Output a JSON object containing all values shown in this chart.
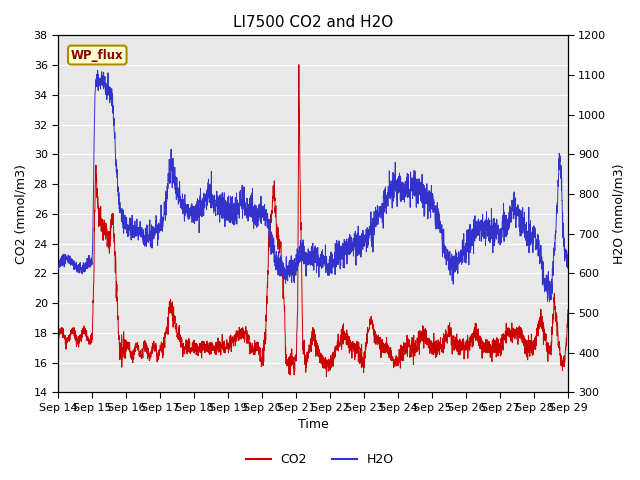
{
  "title": "LI7500 CO2 and H2O",
  "xlabel": "Time",
  "ylabel_left": "CO2 (mmol/m3)",
  "ylabel_right": "H2O (mmol/m3)",
  "ylim_left": [
    14,
    38
  ],
  "ylim_right": [
    300,
    1200
  ],
  "yticks_left": [
    14,
    16,
    18,
    20,
    22,
    24,
    26,
    28,
    30,
    32,
    34,
    36,
    38
  ],
  "yticks_right": [
    300,
    400,
    500,
    600,
    700,
    800,
    900,
    1000,
    1100,
    1200
  ],
  "x_labels": [
    "Sep 14",
    "Sep 15",
    "Sep 16",
    "Sep 17",
    "Sep 18",
    "Sep 19",
    "Sep 20",
    "Sep 21",
    "Sep 22",
    "Sep 23",
    "Sep 24",
    "Sep 25",
    "Sep 26",
    "Sep 27",
    "Sep 28",
    "Sep 29"
  ],
  "co2_color": "#cc0000",
  "h2o_color": "#3333cc",
  "background_color": "#e8e8e8",
  "legend_label_co2": "CO2",
  "legend_label_h2o": "H2O",
  "annotation_text": "WP_flux",
  "annotation_bg": "#ffffcc",
  "annotation_border": "#aa8800",
  "grid_color": "#ffffff",
  "title_fontsize": 11,
  "axis_fontsize": 9,
  "tick_fontsize": 8,
  "legend_fontsize": 9
}
